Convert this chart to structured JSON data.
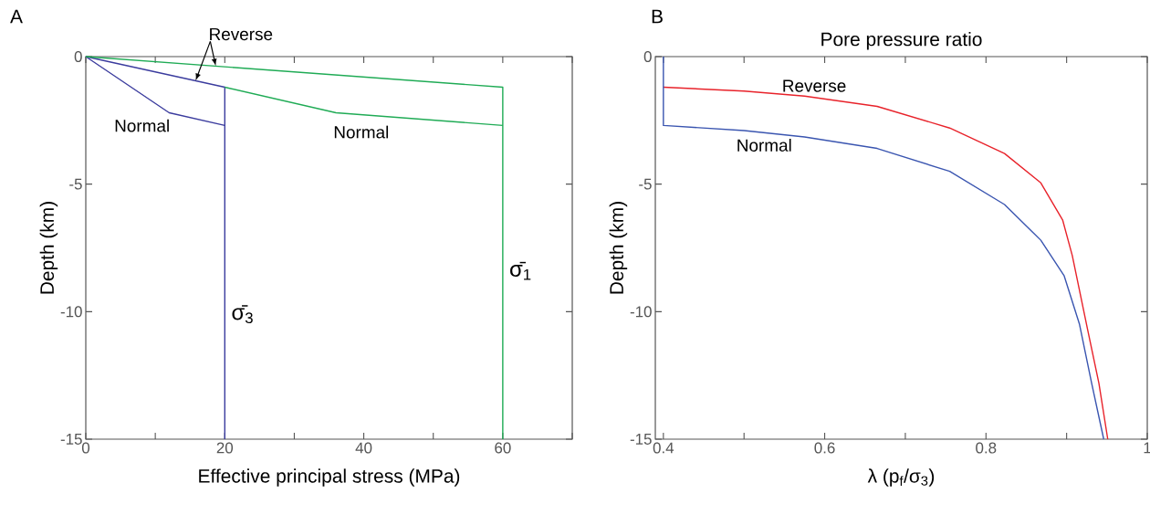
{
  "chart_data": [
    {
      "type": "line",
      "xlabel": "Effective principal stress (MPa)",
      "ylabel": "Depth (km)",
      "xlim": [
        0,
        70
      ],
      "ylim": [
        -15,
        0
      ],
      "xticks": [
        0,
        {
          "value": 10,
          "label": null
        },
        20,
        {
          "value": 30,
          "label": null
        },
        40,
        {
          "value": 50,
          "label": null
        },
        60,
        {
          "value": 70,
          "label": null
        }
      ],
      "yticks": [
        -15,
        -10,
        -5,
        0
      ],
      "series": [
        {
          "color": "#3b3c9e",
          "x": [
            0,
            20,
            20
          ],
          "values": [
            0,
            -1.2,
            -15
          ]
        },
        {
          "color": "#3b3c9e",
          "x": [
            0,
            12,
            20
          ],
          "values": [
            0,
            -2.2,
            -2.7
          ]
        },
        {
          "color": "#1fab55",
          "x": [
            0,
            60,
            60
          ],
          "values": [
            0,
            -1.2,
            -15
          ]
        },
        {
          "color": "#1fab55",
          "x": [
            20,
            36,
            60
          ],
          "values": [
            -1.2,
            -2.2,
            -2.7
          ]
        }
      ],
      "annotations": [
        "A",
        {
          "text": "Reverse",
          "x": 18.7,
          "y": -0.37
        },
        {
          "text": "Normal",
          "x": 12,
          "y": -2.2
        },
        {
          "text": "Normal",
          "x": 36,
          "y": -2.2
        },
        {
          "text": "σ̄$_{3}$",
          "x": 20,
          "y": -10.1
        },
        {
          "text": "σ̄$_{1}$",
          "x": 60,
          "y": -8.4
        }
      ]
    },
    {
      "type": "line",
      "title": "Pore pressure ratio",
      "xlabel": "λ  (p$_{f}$/σ$_{3}$)",
      "ylabel": "Depth (km)",
      "xlim": [
        0.39,
        1
      ],
      "ylim": [
        -15,
        0
      ],
      "xticks": [
        0.4,
        {
          "value": 0.5,
          "label": null
        },
        0.6,
        {
          "value": 0.7,
          "label": null
        },
        0.8,
        {
          "value": 0.9,
          "label": null
        },
        1
      ],
      "yticks": [
        -15,
        -10,
        -5,
        0
      ],
      "series": [
        {
          "color": "#e8222a",
          "x": [
            0.4,
            0.5,
            0.575,
            0.665,
            0.755,
            0.823,
            0.868,
            0.895,
            0.907,
            0.926,
            0.94,
            0.951
          ],
          "values": [
            -1.2,
            -1.35,
            -1.55,
            -1.95,
            -2.8,
            -3.8,
            -4.95,
            -6.4,
            -7.8,
            -10.7,
            -12.8,
            -15
          ]
        },
        {
          "color": "#3a55b0",
          "x": [
            0.4,
            0.4,
            0.5,
            0.575,
            0.665,
            0.755,
            0.823,
            0.868,
            0.897,
            0.916,
            0.931,
            0.946
          ],
          "values": [
            0,
            -2.7,
            -2.9,
            -3.15,
            -3.6,
            -4.5,
            -5.8,
            -7.2,
            -8.6,
            -10.5,
            -12.8,
            -15
          ]
        }
      ],
      "annotations": [
        "B",
        {
          "text": "Reverse",
          "x": 0.587,
          "y": -1.5
        },
        {
          "text": "Normal",
          "x": 0.525,
          "y": -3.0
        }
      ]
    }
  ]
}
